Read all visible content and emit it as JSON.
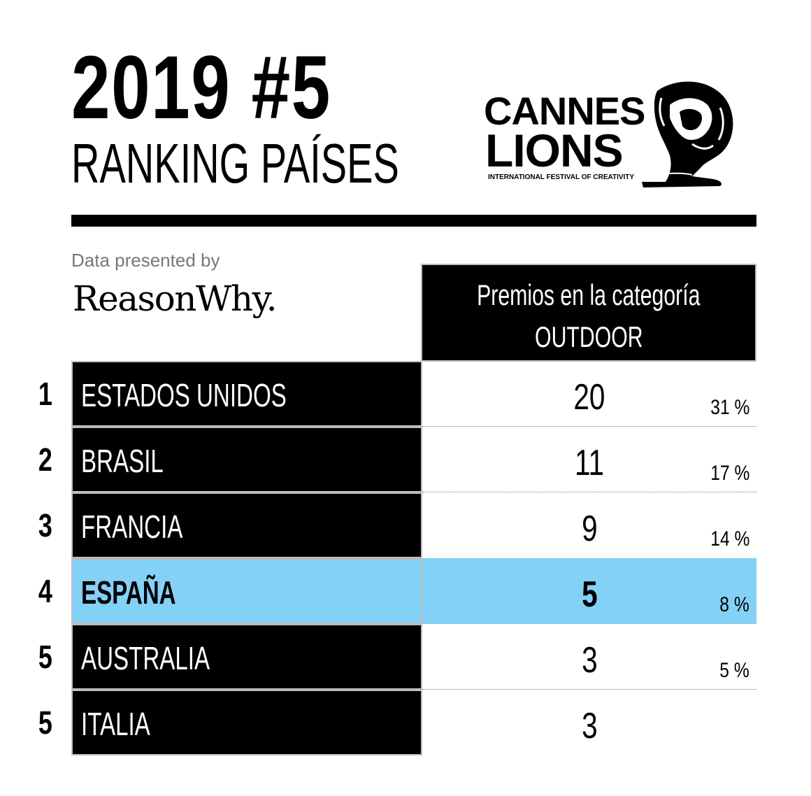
{
  "header": {
    "title": "2019 #5",
    "subtitle": "RANKING PAÍSES"
  },
  "logo": {
    "line1": "CANNES",
    "line2": "LIONS",
    "tagline": "INTERNATIONAL FESTIVAL OF CREATIVITY",
    "icon": "lion-head-icon"
  },
  "presented_by": {
    "label": "Data presented by",
    "brand": "ReasonWhy."
  },
  "column_header": {
    "line1": "Premios en la categoría",
    "line2": "OUTDOOR"
  },
  "rows": [
    {
      "rank": "1",
      "country": "ESTADOS UNIDOS",
      "value": "20",
      "percent": "31 %"
    },
    {
      "rank": "2",
      "country": "BRASIL",
      "value": "11",
      "percent": "17 %"
    },
    {
      "rank": "3",
      "country": "FRANCIA",
      "value": "9",
      "percent": "14 %"
    },
    {
      "rank": "4",
      "country": "ESPAÑA",
      "value": "5",
      "percent": "8 %"
    },
    {
      "rank": "5",
      "country": "AUSTRALIA",
      "value": "3",
      "percent": "5 %"
    },
    {
      "rank": "5",
      "country": "ITALIA",
      "value": "3",
      "percent": ""
    }
  ],
  "colors": {
    "highlight": "#84d1f7",
    "cell_bg": "#000000",
    "border": "#bdbdbd"
  }
}
